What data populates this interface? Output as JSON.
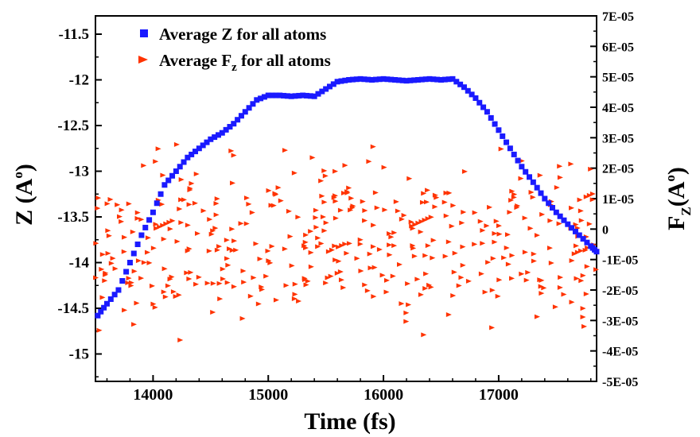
{
  "chart_data": {
    "type": "scatter",
    "xlabel": "Time (fs)",
    "ylabel": "Z (A",
    "ylabel_sup": "o",
    "ylabel_close": ")",
    "y2label": "F",
    "y2label_sub": "Z",
    "y2label_open": "(A",
    "y2label_sup": "o",
    "y2label_close": ")",
    "xlim": [
      13500,
      17850
    ],
    "ylim": [
      -15.3,
      -11.3
    ],
    "y2lim": [
      -5e-05,
      7e-05
    ],
    "grid": false,
    "legend_position": "top-left",
    "x_ticks": [
      "14000",
      "15000",
      "16000",
      "17000"
    ],
    "y_ticks": [
      "-11.5",
      "-12",
      "-12.5",
      "-13",
      "-13.5",
      "-14",
      "-14.5",
      "-15"
    ],
    "y2_ticks": [
      "7E-05",
      "6E-05",
      "5E-05",
      "4E-05",
      "3E-05",
      "2E-05",
      "1E-05",
      "0",
      "-1E-05",
      "-2E-05",
      "-3E-05",
      "-4E-05",
      "-5E-05"
    ],
    "series": [
      {
        "name": "Average Z for all atoms",
        "legend_text": "Average Z for all atoms",
        "color": "#1a1aff",
        "marker": "square",
        "axis": "left",
        "points": [
          [
            13520,
            -14.58
          ],
          [
            13600,
            -14.45
          ],
          [
            13700,
            -14.3
          ],
          [
            13800,
            -14.0
          ],
          [
            13900,
            -13.7
          ],
          [
            14000,
            -13.45
          ],
          [
            14100,
            -13.15
          ],
          [
            14200,
            -13.0
          ],
          [
            14300,
            -12.85
          ],
          [
            14400,
            -12.75
          ],
          [
            14500,
            -12.65
          ],
          [
            14600,
            -12.58
          ],
          [
            14700,
            -12.48
          ],
          [
            14800,
            -12.35
          ],
          [
            14900,
            -12.22
          ],
          [
            15000,
            -12.17
          ],
          [
            15100,
            -12.17
          ],
          [
            15200,
            -12.18
          ],
          [
            15300,
            -12.17
          ],
          [
            15400,
            -12.18
          ],
          [
            15500,
            -12.1
          ],
          [
            15600,
            -12.02
          ],
          [
            15700,
            -12.0
          ],
          [
            15800,
            -11.99
          ],
          [
            15900,
            -12.0
          ],
          [
            16000,
            -11.99
          ],
          [
            16100,
            -12.0
          ],
          [
            16200,
            -12.01
          ],
          [
            16300,
            -12.0
          ],
          [
            16400,
            -11.99
          ],
          [
            16500,
            -12.0
          ],
          [
            16600,
            -11.99
          ],
          [
            16700,
            -12.08
          ],
          [
            16800,
            -12.2
          ],
          [
            16900,
            -12.35
          ],
          [
            17000,
            -12.55
          ],
          [
            17100,
            -12.75
          ],
          [
            17200,
            -12.95
          ],
          [
            17300,
            -13.12
          ],
          [
            17400,
            -13.3
          ],
          [
            17500,
            -13.45
          ],
          [
            17600,
            -13.58
          ],
          [
            17700,
            -13.7
          ],
          [
            17800,
            -13.82
          ],
          [
            17850,
            -13.88
          ]
        ]
      },
      {
        "name": "Average Fz for all atoms",
        "legend_text": "Average F",
        "legend_sub": "z",
        "legend_rest": " for all atoms",
        "color": "#ff3300",
        "marker": "arrow",
        "axis": "right",
        "seed": 7,
        "count": 420,
        "range": [
          -4e-05,
          3.6e-05
        ],
        "points": []
      }
    ]
  }
}
